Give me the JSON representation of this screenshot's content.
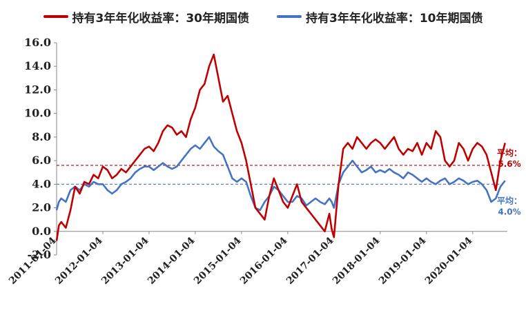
{
  "legend": [
    {
      "label": "持有3年年化收益率：30年期国债",
      "color": "#C00000"
    },
    {
      "label": "持有3年年化收益率：10年期国债",
      "color": "#4472C4"
    }
  ],
  "avg_labels": {
    "s30": {
      "prefix": "平均：",
      "value": "5.6%"
    },
    "s10": {
      "prefix": "平均：",
      "value": "4.0%"
    }
  },
  "chart_data": {
    "type": "line",
    "ylim": [
      -2.0,
      16.0
    ],
    "yticks": [
      "16.0",
      "14.0",
      "12.0",
      "10.0",
      "8.0",
      "6.0",
      "4.0",
      "2.0",
      "0.0",
      "-2.0"
    ],
    "ytick_values": [
      16,
      14,
      12,
      10,
      8,
      6,
      4,
      2,
      0,
      -2
    ],
    "xticks": [
      "2011-01-04",
      "2012-01-04",
      "2013-01-04",
      "2014-01-04",
      "2015-01-04",
      "2016-01-04",
      "2017-01-04",
      "2018-01-04",
      "2019-01-04",
      "2020-01-04"
    ],
    "xlim": [
      2011.0,
      2020.75
    ],
    "series": [
      {
        "name": "持有3年年化收益率：30年期国债",
        "color": "#C00000",
        "average": 5.6,
        "x": [
          2011.0,
          2011.05,
          2011.1,
          2011.2,
          2011.3,
          2011.4,
          2011.5,
          2011.6,
          2011.7,
          2011.8,
          2011.9,
          2012.0,
          2012.1,
          2012.2,
          2012.3,
          2012.4,
          2012.5,
          2012.6,
          2012.7,
          2012.8,
          2012.9,
          2013.0,
          2013.1,
          2013.2,
          2013.3,
          2013.4,
          2013.5,
          2013.6,
          2013.7,
          2013.8,
          2013.9,
          2014.0,
          2014.1,
          2014.2,
          2014.3,
          2014.4,
          2014.5,
          2014.6,
          2014.7,
          2014.8,
          2014.9,
          2015.0,
          2015.1,
          2015.2,
          2015.3,
          2015.4,
          2015.5,
          2015.6,
          2015.7,
          2015.8,
          2015.9,
          2016.0,
          2016.1,
          2016.2,
          2016.3,
          2016.4,
          2016.5,
          2016.6,
          2016.7,
          2016.8,
          2016.9,
          2016.95,
          2017.0,
          2017.1,
          2017.2,
          2017.3,
          2017.4,
          2017.5,
          2017.6,
          2017.7,
          2017.8,
          2017.9,
          2018.0,
          2018.1,
          2018.2,
          2018.3,
          2018.4,
          2018.5,
          2018.6,
          2018.7,
          2018.8,
          2018.9,
          2019.0,
          2019.1,
          2019.2,
          2019.3,
          2019.4,
          2019.5,
          2019.6,
          2019.7,
          2019.8,
          2019.9,
          2020.0,
          2020.1,
          2020.2,
          2020.3,
          2020.4,
          2020.5,
          2020.6,
          2020.7
        ],
        "values": [
          -0.8,
          0.5,
          0.8,
          0.3,
          1.8,
          3.8,
          3.2,
          4.2,
          4.0,
          4.8,
          4.5,
          5.5,
          5.2,
          4.5,
          4.8,
          5.3,
          5.0,
          5.5,
          6.0,
          6.5,
          7.0,
          7.2,
          6.8,
          7.5,
          8.5,
          9.0,
          8.8,
          8.2,
          8.5,
          8.0,
          9.5,
          10.5,
          12.0,
          12.5,
          14.0,
          15.0,
          13.0,
          11.0,
          11.5,
          10.0,
          8.5,
          7.5,
          6.0,
          4.0,
          2.0,
          1.5,
          1.0,
          3.0,
          4.5,
          3.5,
          2.5,
          2.0,
          3.0,
          4.0,
          2.5,
          2.0,
          1.5,
          1.0,
          0.5,
          0.0,
          1.5,
          0.2,
          -0.5,
          4.0,
          7.0,
          7.5,
          7.0,
          8.0,
          7.5,
          7.0,
          7.5,
          7.8,
          7.5,
          7.0,
          7.5,
          8.0,
          7.0,
          6.5,
          7.0,
          6.8,
          7.5,
          6.5,
          7.5,
          7.0,
          8.5,
          8.0,
          6.0,
          5.5,
          6.0,
          7.5,
          7.0,
          6.0,
          7.0,
          7.5,
          7.2,
          6.5,
          5.0,
          3.5,
          6.0,
          7.5
        ]
      },
      {
        "name": "持有3年年化收益率：10年期国债",
        "color": "#4472C4",
        "average": 4.0,
        "x": [
          2011.0,
          2011.05,
          2011.1,
          2011.2,
          2011.3,
          2011.4,
          2011.5,
          2011.6,
          2011.7,
          2011.8,
          2011.9,
          2012.0,
          2012.1,
          2012.2,
          2012.3,
          2012.4,
          2012.5,
          2012.6,
          2012.7,
          2012.8,
          2012.9,
          2013.0,
          2013.1,
          2013.2,
          2013.3,
          2013.4,
          2013.5,
          2013.6,
          2013.7,
          2013.8,
          2013.9,
          2014.0,
          2014.1,
          2014.2,
          2014.3,
          2014.4,
          2014.5,
          2014.6,
          2014.7,
          2014.8,
          2014.9,
          2015.0,
          2015.1,
          2015.2,
          2015.3,
          2015.4,
          2015.5,
          2015.6,
          2015.7,
          2015.8,
          2015.9,
          2016.0,
          2016.1,
          2016.2,
          2016.3,
          2016.4,
          2016.5,
          2016.6,
          2016.7,
          2016.8,
          2016.9,
          2016.95,
          2017.0,
          2017.1,
          2017.2,
          2017.3,
          2017.4,
          2017.5,
          2017.6,
          2017.7,
          2017.8,
          2017.9,
          2018.0,
          2018.1,
          2018.2,
          2018.3,
          2018.4,
          2018.5,
          2018.6,
          2018.7,
          2018.8,
          2018.9,
          2019.0,
          2019.1,
          2019.2,
          2019.3,
          2019.4,
          2019.5,
          2019.6,
          2019.7,
          2019.8,
          2019.9,
          2020.0,
          2020.1,
          2020.2,
          2020.3,
          2020.4,
          2020.5,
          2020.6,
          2020.7
        ],
        "values": [
          1.8,
          2.5,
          2.8,
          2.5,
          3.5,
          3.8,
          3.5,
          4.0,
          3.8,
          4.2,
          4.0,
          4.0,
          3.5,
          3.2,
          3.5,
          4.0,
          4.2,
          4.5,
          5.0,
          5.3,
          5.5,
          5.5,
          5.2,
          5.5,
          5.8,
          5.5,
          5.3,
          5.5,
          6.0,
          6.5,
          7.0,
          7.3,
          7.0,
          7.5,
          8.0,
          7.2,
          6.8,
          6.5,
          5.5,
          4.5,
          4.2,
          4.5,
          4.2,
          3.0,
          2.0,
          1.8,
          2.5,
          3.0,
          3.8,
          3.5,
          3.0,
          2.5,
          2.5,
          3.0,
          2.8,
          2.2,
          2.5,
          2.8,
          2.5,
          2.3,
          2.8,
          2.5,
          2.0,
          4.0,
          5.0,
          5.5,
          6.0,
          5.5,
          5.0,
          5.2,
          5.5,
          5.0,
          5.2,
          5.0,
          5.3,
          5.0,
          4.8,
          4.5,
          5.0,
          4.8,
          4.5,
          4.2,
          4.5,
          4.2,
          4.0,
          4.3,
          4.5,
          4.0,
          4.2,
          4.5,
          4.3,
          4.0,
          4.2,
          4.3,
          4.0,
          3.5,
          2.5,
          2.8,
          3.8,
          4.3
        ]
      }
    ]
  }
}
